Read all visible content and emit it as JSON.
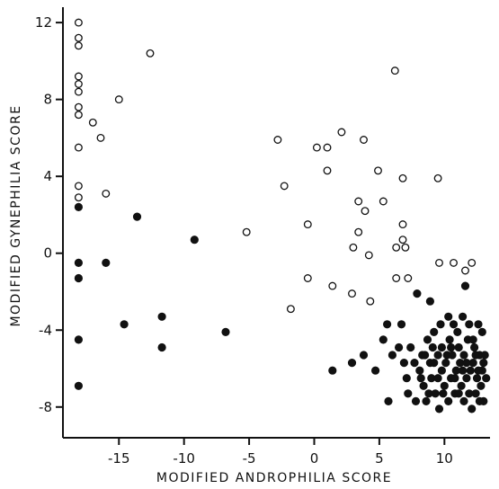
{
  "chart_data": {
    "type": "scatter",
    "title": "",
    "xlabel": "MODIFIED ANDROPHILIA SCORE",
    "ylabel": "MODIFIED GYNEPHILIA SCORE",
    "xlim": [
      -19.3,
      13.5
    ],
    "ylim": [
      -9.6,
      12.8
    ],
    "xticks": [
      -15,
      -10,
      -5,
      0,
      5,
      10
    ],
    "yticks": [
      -8,
      -4,
      0,
      4,
      8,
      12
    ],
    "xtick_labels": [
      "-15",
      "-10",
      "-5",
      "0",
      "5",
      "10"
    ],
    "ytick_labels": [
      "-8",
      "-4",
      "0",
      "4",
      "8",
      "12"
    ],
    "grid": false,
    "legend": "none",
    "colors": {
      "axis": "#111111",
      "marker": "#111111",
      "open_fill": "#ffffff"
    },
    "series": [
      {
        "marker": "open-circle",
        "points": [
          [
            -18.1,
            12.0
          ],
          [
            -18.1,
            11.2
          ],
          [
            -18.1,
            10.8
          ],
          [
            -18.1,
            9.2
          ],
          [
            -18.1,
            8.8
          ],
          [
            -18.1,
            8.4
          ],
          [
            -18.1,
            7.6
          ],
          [
            -18.1,
            7.2
          ],
          [
            -18.1,
            5.5
          ],
          [
            -18.1,
            3.5
          ],
          [
            -18.1,
            2.9
          ],
          [
            -17.0,
            6.8
          ],
          [
            -16.4,
            6.0
          ],
          [
            -16.0,
            3.1
          ],
          [
            -15.0,
            8.0
          ],
          [
            -12.6,
            10.4
          ],
          [
            -5.2,
            1.1
          ],
          [
            -2.8,
            5.9
          ],
          [
            -2.3,
            3.5
          ],
          [
            -1.8,
            -2.9
          ],
          [
            -0.5,
            1.5
          ],
          [
            -0.5,
            -1.3
          ],
          [
            0.2,
            5.5
          ],
          [
            1.0,
            5.5
          ],
          [
            1.0,
            4.3
          ],
          [
            1.4,
            -1.7
          ],
          [
            2.1,
            6.3
          ],
          [
            2.9,
            -2.1
          ],
          [
            3.0,
            0.3
          ],
          [
            3.4,
            1.1
          ],
          [
            3.4,
            2.7
          ],
          [
            3.8,
            5.9
          ],
          [
            3.9,
            2.2
          ],
          [
            4.2,
            -0.1
          ],
          [
            4.3,
            -2.5
          ],
          [
            4.9,
            4.3
          ],
          [
            5.3,
            2.7
          ],
          [
            6.2,
            9.5
          ],
          [
            6.3,
            0.3
          ],
          [
            6.3,
            -1.3
          ],
          [
            6.8,
            3.9
          ],
          [
            6.8,
            1.5
          ],
          [
            6.8,
            0.7
          ],
          [
            7.0,
            0.3
          ],
          [
            7.2,
            -1.3
          ],
          [
            9.5,
            3.9
          ],
          [
            9.6,
            -0.5
          ],
          [
            10.7,
            -0.5
          ],
          [
            11.6,
            -0.9
          ],
          [
            12.1,
            -0.5
          ]
        ]
      },
      {
        "marker": "filled-circle",
        "points": [
          [
            -18.1,
            2.4
          ],
          [
            -18.1,
            -0.5
          ],
          [
            -18.1,
            -1.3
          ],
          [
            -18.1,
            -4.5
          ],
          [
            -18.1,
            -6.9
          ],
          [
            -16.0,
            -0.5
          ],
          [
            -13.6,
            1.9
          ],
          [
            -14.6,
            -3.7
          ],
          [
            -11.7,
            -3.3
          ],
          [
            -11.7,
            -4.9
          ],
          [
            -9.2,
            0.7
          ],
          [
            -6.8,
            -4.1
          ],
          [
            1.4,
            -6.1
          ],
          [
            2.9,
            -5.7
          ],
          [
            3.8,
            -5.3
          ],
          [
            4.7,
            -6.1
          ],
          [
            5.3,
            -4.5
          ],
          [
            5.6,
            -3.7
          ],
          [
            5.7,
            -7.7
          ],
          [
            6.0,
            -5.3
          ],
          [
            6.5,
            -4.9
          ],
          [
            6.7,
            -3.7
          ],
          [
            6.9,
            -5.7
          ],
          [
            7.1,
            -6.5
          ],
          [
            7.2,
            -7.3
          ],
          [
            7.4,
            -4.9
          ],
          [
            7.7,
            -5.7
          ],
          [
            7.9,
            -2.1
          ],
          [
            8.1,
            -6.1
          ],
          [
            8.3,
            -5.3
          ],
          [
            8.4,
            -6.9
          ],
          [
            8.6,
            -7.7
          ],
          [
            8.7,
            -4.5
          ],
          [
            8.9,
            -2.5
          ],
          [
            8.9,
            -5.7
          ],
          [
            9.0,
            -6.5
          ],
          [
            9.2,
            -4.1
          ],
          [
            9.3,
            -7.3
          ],
          [
            9.5,
            -5.3
          ],
          [
            9.6,
            -8.1
          ],
          [
            9.7,
            -3.7
          ],
          [
            9.8,
            -6.1
          ],
          [
            9.8,
            -4.9
          ],
          [
            10.0,
            -6.9
          ],
          [
            10.1,
            -5.7
          ],
          [
            10.3,
            -7.7
          ],
          [
            10.3,
            -3.3
          ],
          [
            10.4,
            -4.5
          ],
          [
            10.5,
            -6.5
          ],
          [
            10.6,
            -5.3
          ],
          [
            10.7,
            -3.7
          ],
          [
            10.8,
            -7.3
          ],
          [
            10.9,
            -6.1
          ],
          [
            11.0,
            -4.1
          ],
          [
            11.1,
            -4.9
          ],
          [
            11.2,
            -5.7
          ],
          [
            11.3,
            -6.9
          ],
          [
            11.4,
            -3.3
          ],
          [
            11.5,
            -7.7
          ],
          [
            11.5,
            -5.3
          ],
          [
            11.6,
            -1.7
          ],
          [
            11.7,
            -6.5
          ],
          [
            11.8,
            -4.5
          ],
          [
            11.9,
            -3.7
          ],
          [
            12.0,
            -6.1
          ],
          [
            12.1,
            -8.1
          ],
          [
            12.2,
            -5.7
          ],
          [
            12.3,
            -4.9
          ],
          [
            12.4,
            -7.3
          ],
          [
            12.5,
            -6.5
          ],
          [
            12.6,
            -3.7
          ],
          [
            12.7,
            -5.3
          ],
          [
            12.8,
            -6.9
          ],
          [
            12.9,
            -4.1
          ],
          [
            13.0,
            -7.7
          ],
          [
            13.0,
            -5.7
          ],
          [
            12.9,
            -6.1
          ],
          [
            12.7,
            -7.7
          ],
          [
            12.4,
            -5.3
          ],
          [
            12.2,
            -4.5
          ],
          [
            11.9,
            -7.3
          ],
          [
            11.7,
            -5.7
          ],
          [
            11.4,
            -6.1
          ],
          [
            11.1,
            -7.3
          ],
          [
            10.8,
            -6.5
          ],
          [
            10.5,
            -4.9
          ],
          [
            10.2,
            -5.3
          ],
          [
            9.9,
            -7.3
          ],
          [
            9.5,
            -6.5
          ],
          [
            9.2,
            -5.7
          ],
          [
            8.8,
            -7.3
          ],
          [
            8.2,
            -6.5
          ],
          [
            7.8,
            -7.7
          ],
          [
            8.5,
            -5.3
          ],
          [
            9.1,
            -4.9
          ],
          [
            12.6,
            -6.1
          ],
          [
            13.1,
            -5.3
          ],
          [
            13.2,
            -6.5
          ]
        ]
      }
    ]
  }
}
